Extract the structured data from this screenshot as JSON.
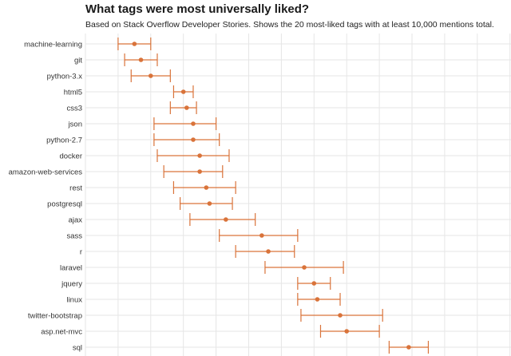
{
  "title": "What tags were most universally liked?",
  "subtitle": "Based on Stack Overflow Developer Stories. Shows the 20 most-liked tags with at least 10,000 mentions total.",
  "colors": {
    "accent": "#d9733a",
    "grid": "#e6e6e6"
  },
  "chart_data": {
    "type": "errorbar-dot",
    "title": "What tags were most universally liked?",
    "subtitle": "Based on Stack Overflow Developer Stories. Shows the 20 most-liked tags with at least 10,000 mentions total.",
    "xlabel": "",
    "ylabel": "",
    "xlim": [
      0,
      1
    ],
    "grid": true,
    "categories": [
      "machine-learning",
      "git",
      "python-3.x",
      "html5",
      "css3",
      "json",
      "python-2.7",
      "docker",
      "amazon-web-services",
      "rest",
      "postgresql",
      "ajax",
      "sass",
      "r",
      "laravel",
      "jquery",
      "linux",
      "twitter-bootstrap",
      "asp.net-mvc",
      "sql"
    ],
    "series": [
      {
        "estimate": [
          0.15,
          0.17,
          0.2,
          0.3,
          0.31,
          0.33,
          0.33,
          0.35,
          0.35,
          0.37,
          0.38,
          0.43,
          0.54,
          0.56,
          0.67,
          0.7,
          0.71,
          0.78,
          0.8,
          0.99
        ],
        "low": [
          0.1,
          0.12,
          0.14,
          0.27,
          0.26,
          0.21,
          0.21,
          0.22,
          0.24,
          0.27,
          0.29,
          0.32,
          0.41,
          0.46,
          0.55,
          0.65,
          0.65,
          0.66,
          0.72,
          0.93
        ],
        "high": [
          0.2,
          0.22,
          0.26,
          0.33,
          0.34,
          0.4,
          0.41,
          0.44,
          0.42,
          0.46,
          0.45,
          0.52,
          0.65,
          0.64,
          0.79,
          0.75,
          0.78,
          0.91,
          0.9,
          1.05
        ]
      }
    ]
  }
}
